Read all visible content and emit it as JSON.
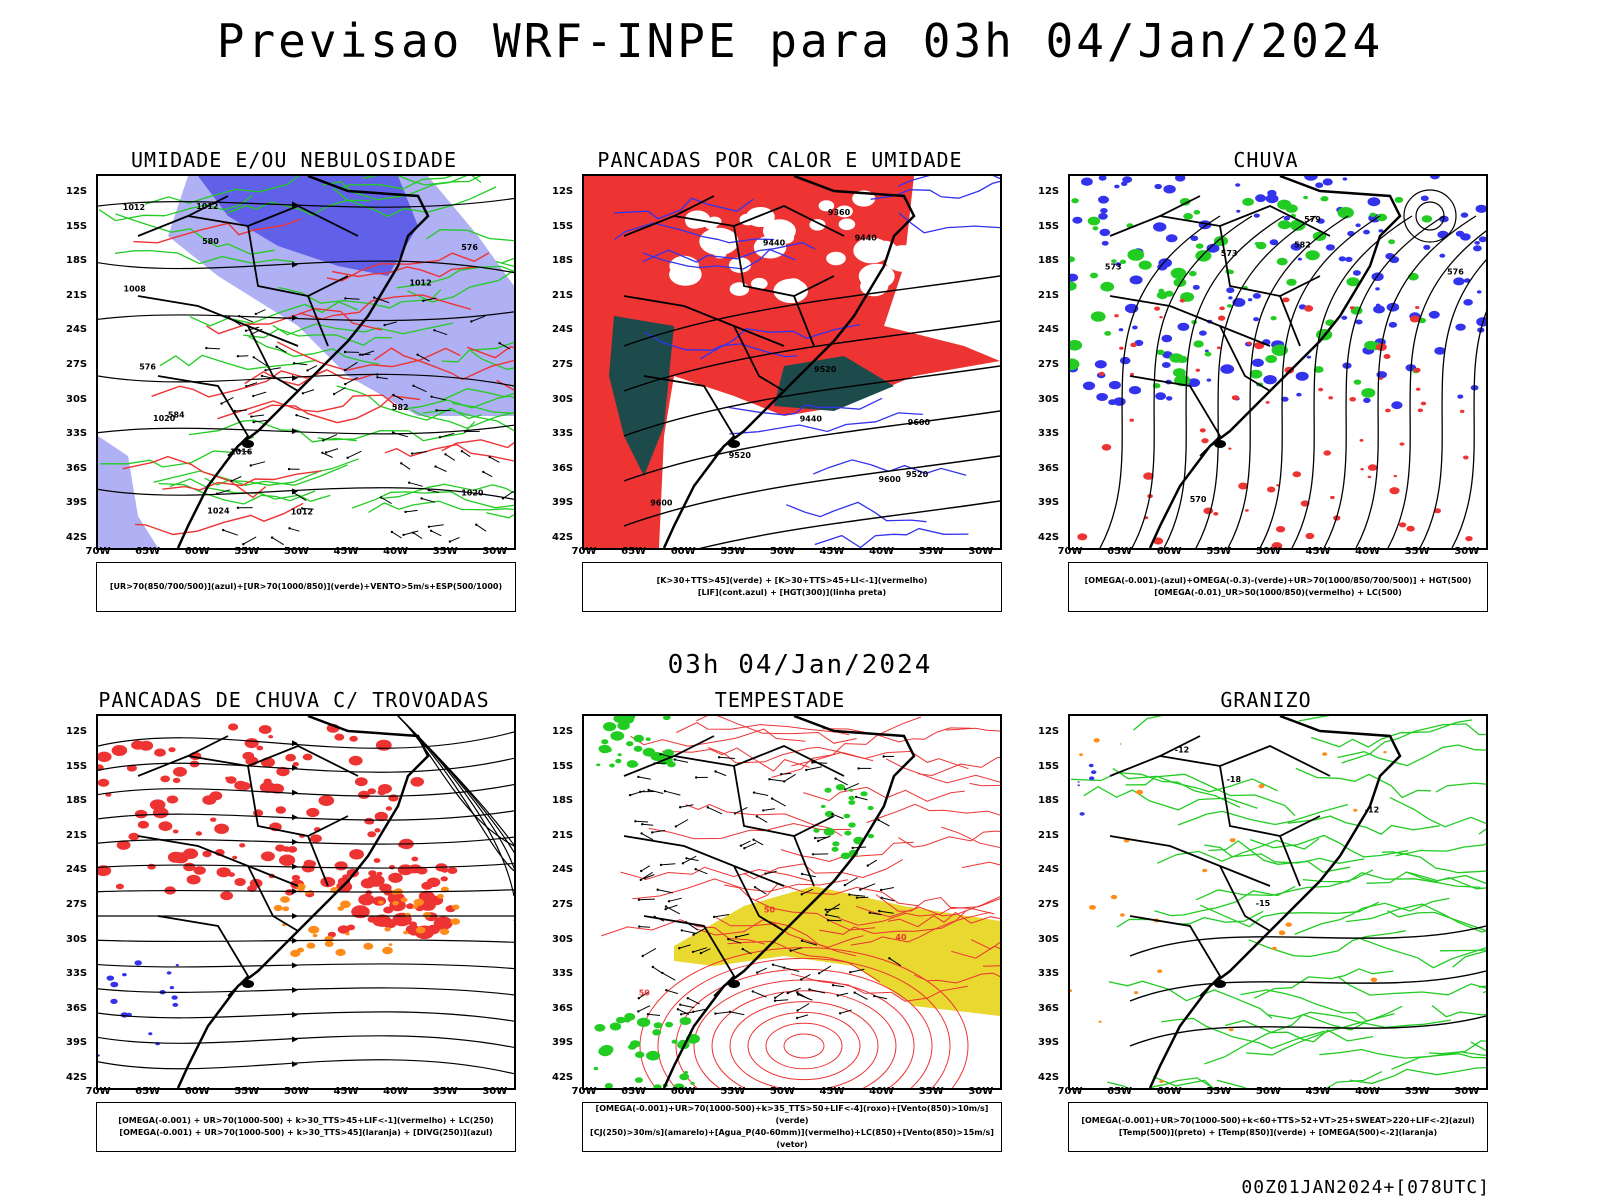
{
  "header": {
    "title": "Previsao WRF-INPE  para 03h 04/Jan/2024",
    "subtitle": "03h 04/Jan/2024",
    "footer": "00Z01JAN2024+[078UTC]"
  },
  "axes": {
    "lat_labels": [
      "12S",
      "15S",
      "18S",
      "21S",
      "24S",
      "27S",
      "30S",
      "33S",
      "36S",
      "39S",
      "42S"
    ],
    "lon_labels": [
      "70W",
      "65W",
      "60W",
      "55W",
      "50W",
      "45W",
      "40W",
      "35W",
      "30W"
    ]
  },
  "colors": {
    "blue": "#3333ee",
    "light_blue": "#b0b0f4",
    "green": "#22cc22",
    "red": "#ee3333",
    "dark_teal": "#1d4a4a",
    "orange": "#ff8c1a",
    "yellow": "#e8d830",
    "black": "#000000"
  },
  "panels": [
    {
      "title": "UMIDADE E/OU NEBULOSIDADE",
      "legend": [
        "[UR>70(850/700/500)](azul)+[UR>70(1000/850)](verde)+VENTO>5m/s+ESP(500/1000)"
      ],
      "contour_labels": [
        "1012",
        "1012",
        "1012",
        "1016",
        "1008",
        "1020",
        "1024",
        "1020",
        "1012",
        "576",
        "576",
        "584",
        "582",
        "580"
      ]
    },
    {
      "title": "PANCADAS POR CALOR E UMIDADE",
      "legend": [
        "[K>30+TTS>45](verde) + [K>30+TTS>45+LI<-1](vermelho)",
        "[LIF](cont.azul) + [HGT(300)](linha preta)"
      ],
      "contour_labels": [
        "9600",
        "9600",
        "9520",
        "9440",
        "9440",
        "9360",
        "9520",
        "9440",
        "9600",
        "9520"
      ]
    },
    {
      "title": "CHUVA",
      "legend": [
        "[OMEGA(-0.001)-(azul)+OMEGA(-0.3)-(verde)+UR>70(1000/850/700/500)] + HGT(500)",
        "[OMEGA(-0.01)_UR>50(1000/850)(vermelho) + LC(500)"
      ],
      "contour_labels": [
        "582",
        "579",
        "576",
        "573",
        "570",
        "573"
      ]
    },
    {
      "title": "PANCADAS DE CHUVA C/ TROVOADAS",
      "legend": [
        "[OMEGA(-0.001) + UR>70(1000-500) + k>30_TTS>45+LIF<-1](vermelho) + LC(250)",
        "[OMEGA(-0.001) + UR>70(1000-500) + k>30_TTS>45](laranja) + [DIVG(250)](azul)"
      ],
      "contour_labels": []
    },
    {
      "title": "TEMPESTADE",
      "legend": [
        "[OMEGA(-0.001)+UR>70(1000-500)+k>35_TTS>50+LIF<-4](roxo)+[Vento(850)>10m/s](verde)",
        "[CJ(250)>30m/s](amarelo)+[Agua_P(40-60mm)](vermelho)+LC(850)+[Vento(850)>15m/s](vetor)"
      ],
      "contour_labels": [
        "50",
        "50",
        "40"
      ]
    },
    {
      "title": "GRANIZO",
      "legend": [
        "[OMEGA(-0.001)+UR>70(1000-500)+k<60+TTS>52+VT>25+SWEAT>220+LIF<-2](azul)",
        "[Temp(500)](preto) + [Temp(850)](verde) + [OMEGA(500)<-2](laranja)"
      ],
      "contour_labels": [
        "-12",
        "-15",
        "-18",
        "-12"
      ]
    }
  ]
}
